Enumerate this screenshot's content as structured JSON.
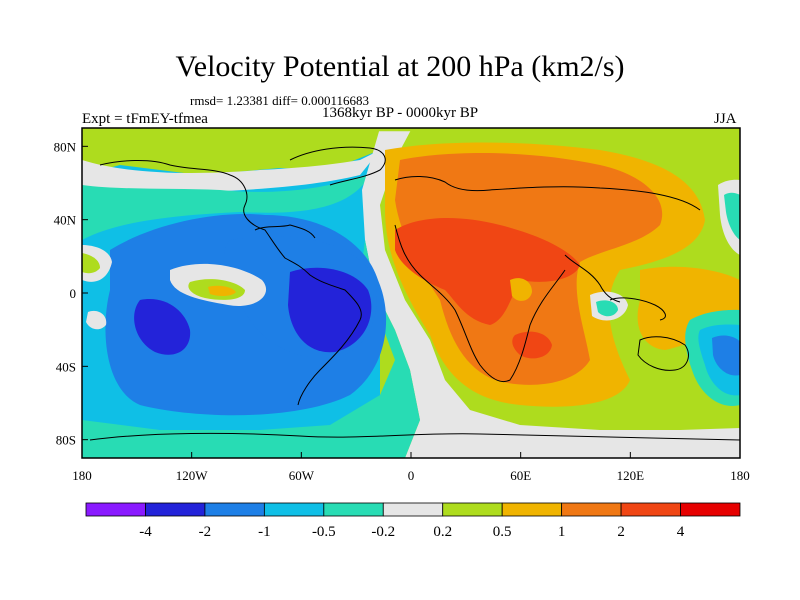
{
  "title": "Velocity Potential at 200 hPa (km2/s)",
  "stats": "rmsd= 1.23381 diff= 0.000116683",
  "expt": "Expt = tFmEY-tfmea",
  "period": "1368kyr BP - 0000kyr BP",
  "season": "JJA",
  "map": {
    "lon_range": [
      -180,
      180
    ],
    "lat_range": [
      -90,
      90
    ],
    "x_ticks": [
      "180",
      "120W",
      "60W",
      "0",
      "60E",
      "120E",
      "180"
    ],
    "y_ticks": [
      "80N",
      "40N",
      "0",
      "40S",
      "80S"
    ],
    "regions": [
      {
        "name": "western-hemisphere-negative",
        "level": "-0.5"
      },
      {
        "name": "eastern-hemisphere-positive",
        "level": "0.5"
      },
      {
        "name": "pacific-minimum",
        "level": "-4"
      },
      {
        "name": "south-america-minimum",
        "level": "-4"
      },
      {
        "name": "north-africa-maximum",
        "level": "4"
      },
      {
        "name": "indian-ocean-maximum",
        "level": "4"
      }
    ]
  },
  "colorbar": {
    "colors": [
      "#8a1aff",
      "#2323d9",
      "#1e7fe6",
      "#0fbfe6",
      "#28dcb4",
      "#e6e6e6",
      "#aedc1e",
      "#f0b400",
      "#f07814",
      "#f04614",
      "#e60000"
    ],
    "labels": [
      "-4",
      "-2",
      "-1",
      "-0.5",
      "-0.2",
      "0.2",
      "0.5",
      "1",
      "2",
      "4"
    ]
  }
}
